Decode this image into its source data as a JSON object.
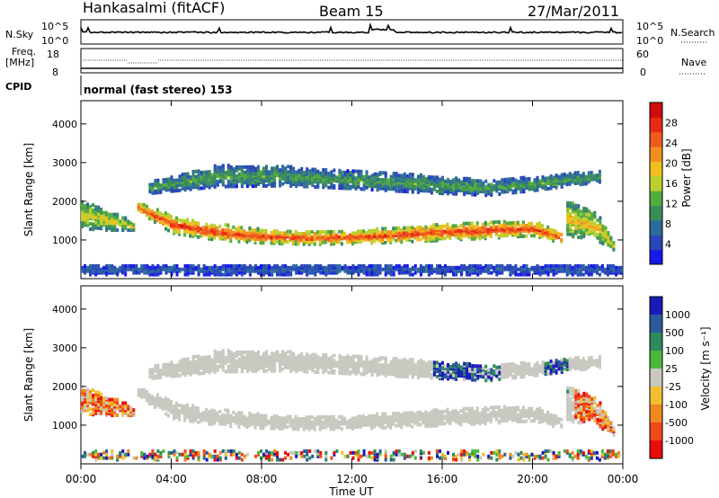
{
  "header": {
    "station": "Hankasalmi (fitACF)",
    "beam": "Beam 15",
    "date": "27/Mar/2011",
    "cpid_label": "CPID",
    "cpid_text": "normal (fast stereo) 153"
  },
  "nsky_panel": {
    "left_label": "N.Sky",
    "right_label": "N.Search",
    "left_ticks": [
      "10^5",
      "10^0"
    ],
    "right_ticks": [
      "10^5",
      "10^0"
    ]
  },
  "freq_panel": {
    "label_top": "Freq.",
    "label_unit": "[MHz]",
    "right_label": "Nave",
    "left_ticks": [
      "18",
      "8"
    ],
    "right_ticks": [
      "60",
      "0"
    ]
  },
  "chart_data": [
    {
      "type": "heatmap",
      "panel": "power",
      "xlabel": "Time UT",
      "ylabel": "Slant Range [km]",
      "x_ticks": [
        "00:00",
        "04:00",
        "08:00",
        "12:00",
        "16:00",
        "20:00",
        "00:00"
      ],
      "xlim_hours": [
        0,
        24
      ],
      "ylim": [
        0,
        4600
      ],
      "y_ticks": [
        1000,
        2000,
        3000,
        4000
      ],
      "colorbar": {
        "label": "Power [dB]",
        "ticks": [
          4,
          8,
          12,
          16,
          20,
          24,
          28
        ],
        "range": [
          0,
          32
        ],
        "colors": [
          "#1818e8",
          "#2848b8",
          "#2e6a9c",
          "#3a8c5c",
          "#54ac3c",
          "#b8d030",
          "#f0c020",
          "#f09020",
          "#f05a1c",
          "#e82a14",
          "#d00c0c"
        ]
      },
      "bands": [
        {
          "name": "main-echo-band",
          "description_level": "high",
          "hours": [
            2.5,
            4,
            6,
            8,
            10,
            12,
            14,
            16,
            18,
            20,
            21.3
          ],
          "center_km": [
            1900,
            1450,
            1250,
            1150,
            1100,
            1120,
            1180,
            1250,
            1300,
            1350,
            1100
          ],
          "width_km": [
            250,
            450,
            420,
            360,
            330,
            340,
            380,
            420,
            420,
            380,
            300
          ],
          "power_db": 27
        },
        {
          "name": "upper-band",
          "description_level": "medium",
          "hours": [
            3,
            6,
            9,
            12,
            15,
            18,
            20,
            23
          ],
          "center_km": [
            2400,
            2700,
            2700,
            2600,
            2500,
            2400,
            2500,
            2700
          ],
          "width_km": [
            300,
            550,
            500,
            450,
            450,
            400,
            350,
            300
          ],
          "power_db": 12
        },
        {
          "name": "early-patch",
          "description_level": "medium",
          "hours": [
            0,
            0.8,
            1.6,
            2.4
          ],
          "center_km": [
            1700,
            1600,
            1500,
            1400
          ],
          "width_km": [
            700,
            600,
            400,
            200
          ],
          "power_db": 18
        },
        {
          "name": "near-range-clutter",
          "description_level": "low",
          "hours": [
            0,
            24
          ],
          "center_km": [
            280,
            280
          ],
          "width_km": [
            260,
            260
          ],
          "power_db": 6
        },
        {
          "name": "late-patches",
          "description_level": "high",
          "hours": [
            21.5,
            22.2,
            22.9,
            23.6
          ],
          "center_km": [
            1600,
            1500,
            1350,
            850
          ],
          "width_km": [
            900,
            800,
            700,
            150
          ],
          "power_db": 20
        }
      ]
    },
    {
      "type": "heatmap",
      "panel": "velocity",
      "xlabel": "Time UT",
      "ylabel": "Slant Range [km]",
      "x_ticks": [
        "00:00",
        "04:00",
        "08:00",
        "12:00",
        "16:00",
        "20:00",
        "00:00"
      ],
      "xlim_hours": [
        0,
        24
      ],
      "ylim": [
        0,
        4600
      ],
      "y_ticks": [
        1000,
        2000,
        3000,
        4000
      ],
      "colorbar": {
        "label": "Velocity [m s⁻¹]",
        "ticks": [
          1000,
          500,
          100,
          25,
          -25,
          -100,
          -500,
          -1000
        ],
        "colors": [
          "#1a1ab8",
          "#2a5a9a",
          "#2e8a5a",
          "#4cb83a",
          "#c8c8c0",
          "#f0c030",
          "#f08820",
          "#f04818",
          "#e80c0c"
        ]
      },
      "ground_scatter_color": "#c8c8c0",
      "flow_regions": [
        {
          "name": "eastward-flow-patch",
          "hours": [
            15.5,
            18.5
          ],
          "km": [
            1800,
            2800
          ],
          "velocity": 400
        },
        {
          "name": "late-flow-return",
          "hours": [
            20.5,
            21.5
          ],
          "km": [
            1900,
            3100
          ],
          "velocity": 500
        },
        {
          "name": "early-westward",
          "hours": [
            0,
            2.4
          ],
          "km": [
            1300,
            2300
          ],
          "velocity": -300
        },
        {
          "name": "late-westward",
          "hours": [
            21.8,
            23.6
          ],
          "km": [
            800,
            2000
          ],
          "velocity": -350
        }
      ]
    }
  ],
  "colors": {
    "axis": "#000000",
    "background": "#ffffff"
  }
}
